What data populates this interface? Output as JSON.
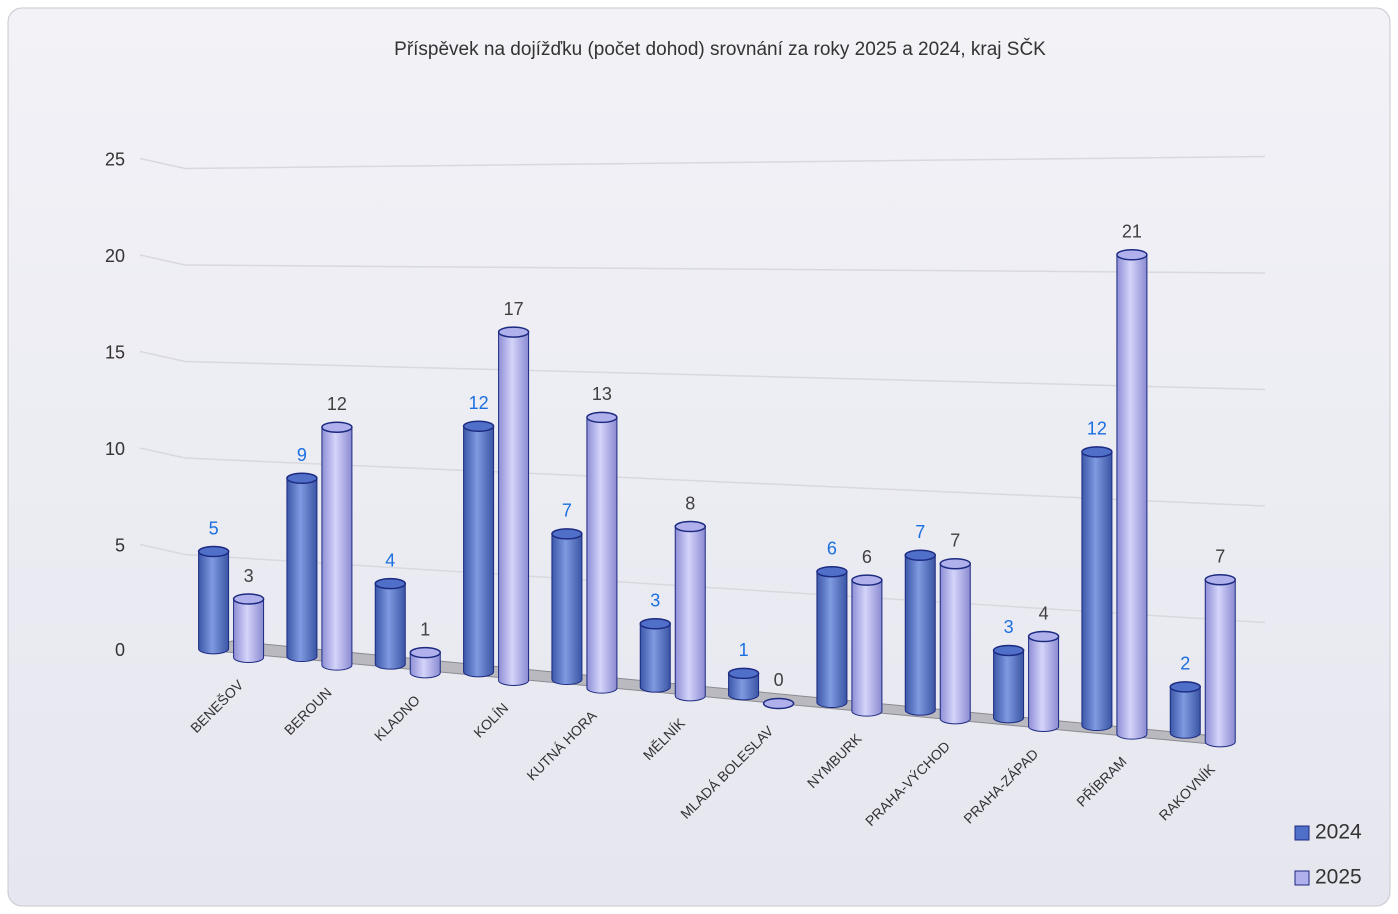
{
  "chart_data": {
    "type": "bar3d",
    "title": "Příspěvek na dojížďku (počet dohod) srovnání za roky 2025 a 2024, kraj SČK",
    "categories": [
      "BENEŠOV",
      "BEROUN",
      "KLADNO",
      "KOLÍN",
      "KUTNÁ HORA",
      "MĚLNÍK",
      "MLADÁ BOLESLAV",
      "NYMBURK",
      "PRAHA-VÝCHOD",
      "PRAHA-ZÁPAD",
      "PŘÍBRAM",
      "RAKOVNÍK"
    ],
    "series": [
      {
        "name": "2024",
        "color": "#4f6fc8",
        "label_color": "#1a6fe0",
        "values": [
          5,
          9,
          4,
          12,
          7,
          3,
          1,
          6,
          7,
          3,
          12,
          2
        ]
      },
      {
        "name": "2025",
        "color": "#b0b0ec",
        "label_color": "#404040",
        "values": [
          3,
          12,
          1,
          17,
          13,
          8,
          0,
          6,
          7,
          4,
          21,
          7
        ]
      }
    ],
    "ylim": [
      0,
      25
    ],
    "yticks": [
      0,
      5,
      10,
      15,
      20,
      25
    ],
    "grid": true,
    "legend": "bottom-right"
  }
}
